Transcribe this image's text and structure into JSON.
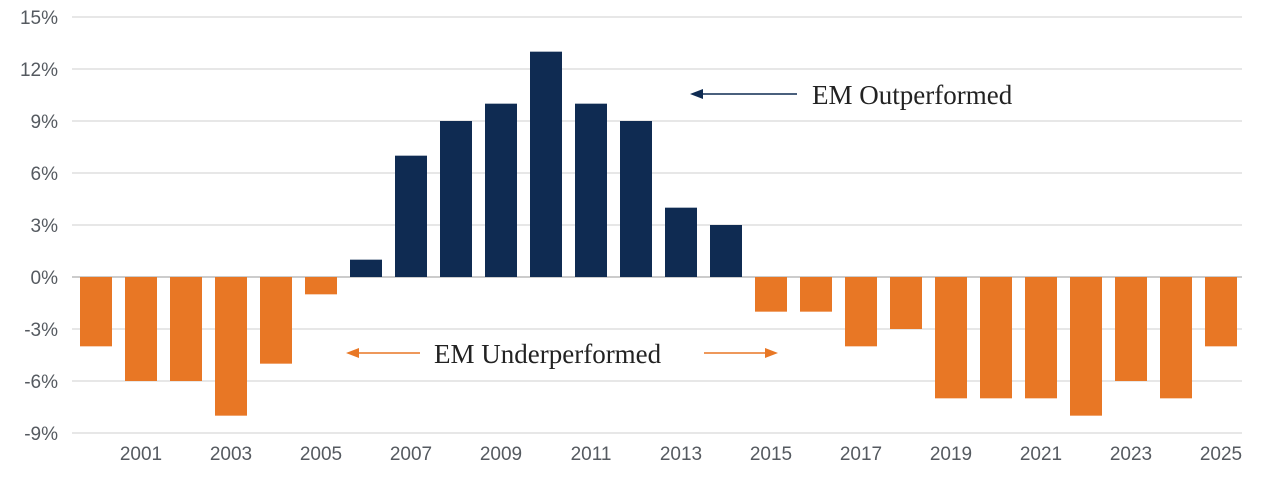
{
  "chart_data": {
    "type": "bar",
    "categories": [
      "2000",
      "2001",
      "2002",
      "2003",
      "2004",
      "2005",
      "2006",
      "2007",
      "2008",
      "2009",
      "2010",
      "2011",
      "2012",
      "2013",
      "2014",
      "2015",
      "2016",
      "2017",
      "2018",
      "2019",
      "2020",
      "2021",
      "2022",
      "2023",
      "2024",
      "2025"
    ],
    "values": [
      -4,
      -6,
      -6,
      -8,
      -5,
      -1,
      1,
      7,
      9,
      10,
      13,
      10,
      9,
      4,
      3,
      -2,
      -2,
      -4,
      -3,
      -7,
      -7,
      -7,
      -8,
      -6,
      -7,
      -4
    ],
    "x_tick_labels": [
      "2001",
      "2003",
      "2005",
      "2007",
      "2009",
      "2011",
      "2013",
      "2015",
      "2017",
      "2019",
      "2021",
      "2023",
      "2025"
    ],
    "y_tick_labels": [
      "15%",
      "12%",
      "9%",
      "6%",
      "3%",
      "0%",
      "-3%",
      "-6%",
      "-9%"
    ],
    "ylim": [
      -9,
      15
    ],
    "grid": true,
    "colors": {
      "positive": "#0f2b52",
      "negative": "#e87725",
      "grid": "#cfcfcf",
      "zero_line": "#9a9a9a"
    },
    "annotations": {
      "outperformed": "EM Outperformed",
      "underperformed": "EM Underperformed"
    }
  }
}
